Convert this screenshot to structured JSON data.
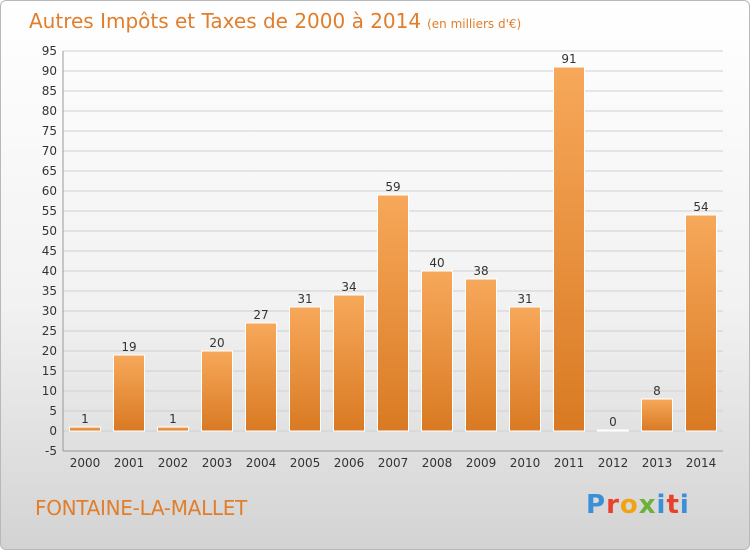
{
  "header": {
    "title": "Autres Impôts et Taxes de 2000 à 2014",
    "unit": "(en milliers d'€)"
  },
  "footer": {
    "commune": "FONTAINE-LA-MALLET",
    "brand": "Proxiti"
  },
  "colors": {
    "accent": "#e07e2b",
    "bar_light": "#f7a85a",
    "bar_dark": "#d97a23",
    "grid": "#d0d0d0"
  },
  "chart_data": {
    "type": "bar",
    "title": "Autres Impôts et Taxes de 2000 à 2014",
    "subtitle": "(en milliers d'€)",
    "xlabel": "",
    "ylabel": "",
    "categories": [
      "2000",
      "2001",
      "2002",
      "2003",
      "2004",
      "2005",
      "2006",
      "2007",
      "2008",
      "2009",
      "2010",
      "2011",
      "2012",
      "2013",
      "2014"
    ],
    "values": [
      1,
      19,
      1,
      20,
      27,
      31,
      34,
      59,
      40,
      38,
      31,
      91,
      0,
      8,
      54
    ],
    "ylim": [
      -5,
      95
    ],
    "yticks": [
      -5,
      0,
      5,
      10,
      15,
      20,
      25,
      30,
      35,
      40,
      45,
      50,
      55,
      60,
      65,
      70,
      75,
      80,
      85,
      90,
      95
    ],
    "grid": true,
    "data_labels": true
  }
}
